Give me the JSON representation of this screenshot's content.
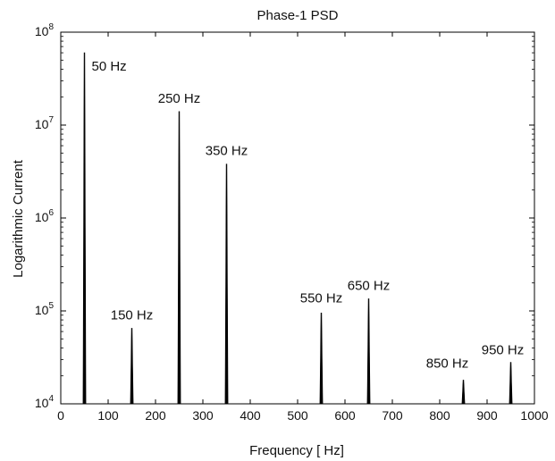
{
  "chart_data": {
    "type": "line",
    "title": "Phase-1 PSD",
    "xlabel": "Frequency [ Hz]",
    "ylabel": "Logarithmic Current",
    "xlim": [
      0,
      1000
    ],
    "ylim": [
      10000,
      100000000
    ],
    "yscale": "log",
    "grid": false,
    "x_ticks": [
      "0",
      "100",
      "200",
      "300",
      "400",
      "500",
      "600",
      "700",
      "800",
      "900",
      "1000"
    ],
    "y_ticks": [
      {
        "base": "10",
        "exp": "4"
      },
      {
        "base": "10",
        "exp": "5"
      },
      {
        "base": "10",
        "exp": "6"
      },
      {
        "base": "10",
        "exp": "7"
      },
      {
        "base": "10",
        "exp": "8"
      }
    ],
    "series": [
      {
        "peaks": [
          {
            "label": "50 Hz",
            "x": 50,
            "y": 60000000
          },
          {
            "label": "150 Hz",
            "x": 150,
            "y": 65000
          },
          {
            "label": "250 Hz",
            "x": 250,
            "y": 14000000
          },
          {
            "label": "350 Hz",
            "x": 350,
            "y": 3800000
          },
          {
            "label": "550 Hz",
            "x": 550,
            "y": 95000
          },
          {
            "label": "650 Hz",
            "x": 650,
            "y": 135000
          },
          {
            "label": "850 Hz",
            "x": 850,
            "y": 18000
          },
          {
            "label": "950 Hz",
            "x": 950,
            "y": 28000
          }
        ]
      }
    ],
    "line_color": "#000000"
  }
}
